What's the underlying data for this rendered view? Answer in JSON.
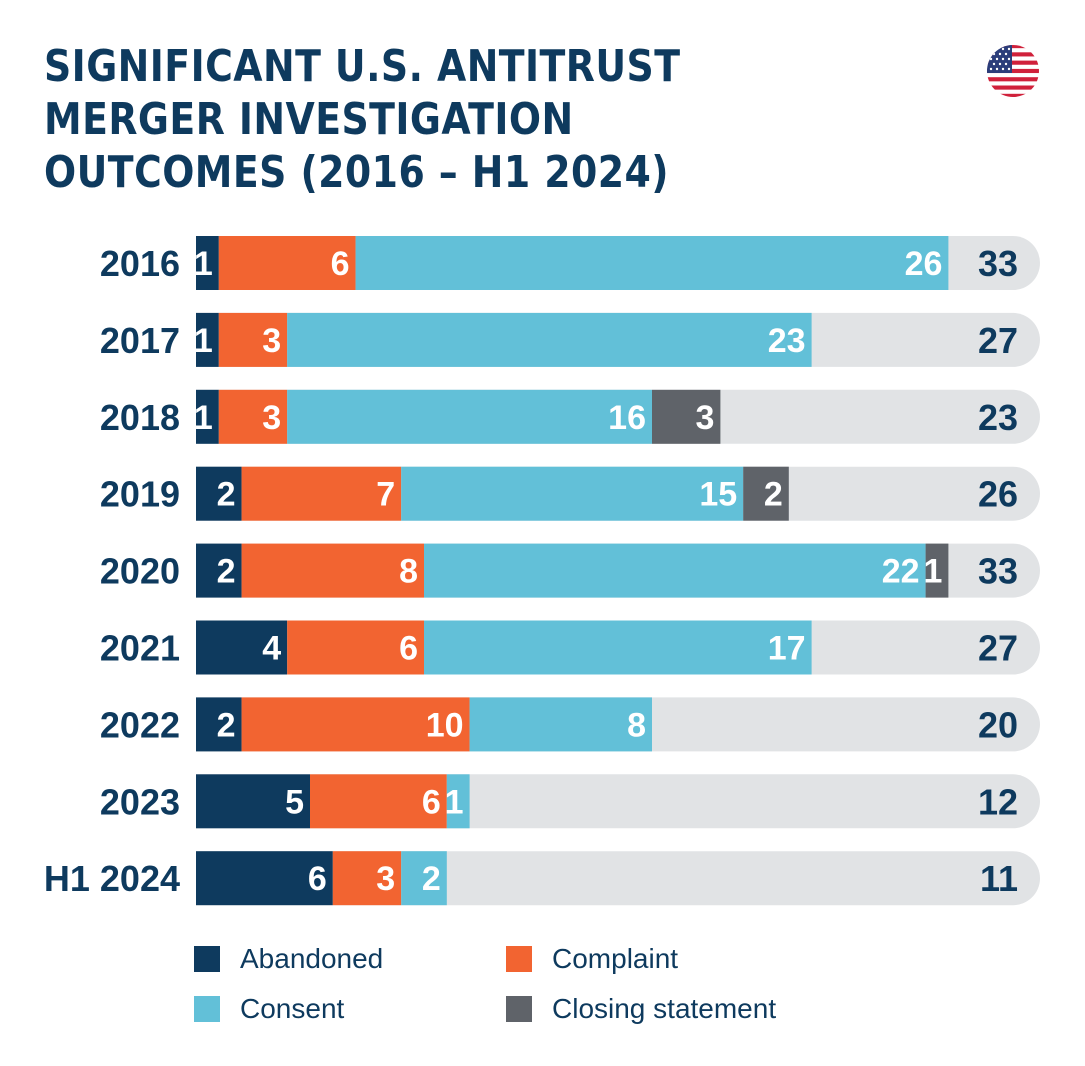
{
  "title_lines": [
    "SIGNIFICANT U.S. ANTITRUST",
    "MERGER INVESTIGATION",
    "OUTCOMES (2016 – H1 2024)"
  ],
  "flag": "us-flag-icon",
  "colors": {
    "abandoned": "#0e3a5e",
    "complaint": "#f26431",
    "consent": "#62c0d8",
    "closing": "#5f6369",
    "track": "#e1e3e5",
    "text": "#0e3a5e"
  },
  "legend": [
    {
      "key": "abandoned",
      "label": "Abandoned"
    },
    {
      "key": "complaint",
      "label": "Complaint"
    },
    {
      "key": "consent",
      "label": "Consent"
    },
    {
      "key": "closing",
      "label": "Closing statement"
    }
  ],
  "chart_data": {
    "type": "bar",
    "orientation": "horizontal",
    "stacked": true,
    "title": "SIGNIFICANT U.S. ANTITRUST MERGER INVESTIGATION OUTCOMES (2016 – H1 2024)",
    "categories": [
      "2016",
      "2017",
      "2018",
      "2019",
      "2020",
      "2021",
      "2022",
      "2023",
      "H1 2024"
    ],
    "series": [
      {
        "name": "Abandoned",
        "key": "abandoned",
        "values": [
          1,
          1,
          1,
          2,
          2,
          4,
          2,
          5,
          6
        ]
      },
      {
        "name": "Complaint",
        "key": "complaint",
        "values": [
          6,
          3,
          3,
          7,
          8,
          6,
          10,
          6,
          3
        ]
      },
      {
        "name": "Consent",
        "key": "consent",
        "values": [
          26,
          23,
          16,
          15,
          22,
          17,
          8,
          1,
          2
        ]
      },
      {
        "name": "Closing statement",
        "key": "closing",
        "values": [
          0,
          0,
          3,
          2,
          1,
          0,
          0,
          0,
          0
        ]
      }
    ],
    "totals": [
      33,
      27,
      23,
      26,
      33,
      27,
      20,
      12,
      11
    ],
    "xlim": [
      0,
      36
    ],
    "legend_position": "bottom",
    "grid": false
  }
}
